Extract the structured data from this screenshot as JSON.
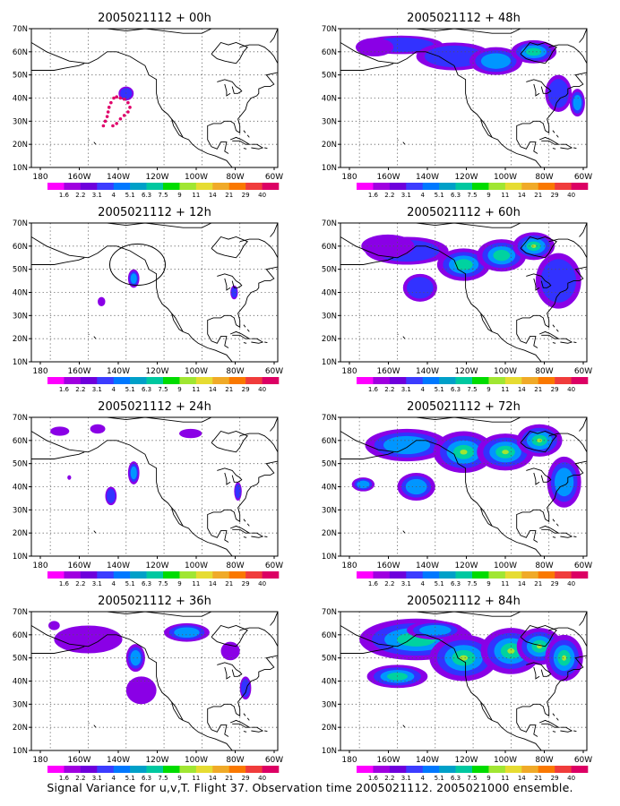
{
  "caption": "Signal Variance for u,v,T. Flight 37. Observation time 2005021112. 2005021000 ensemble.",
  "panels": [
    {
      "title": "2005021112 + 00h",
      "col": 0,
      "row": 0,
      "blobs": [
        [
          140,
          42,
          4,
          3,
          2
        ]
      ],
      "track": true,
      "circle": false
    },
    {
      "title": "2005021112 + 48h",
      "col": 1,
      "row": 0,
      "blobs": [
        [
          158,
          63,
          22,
          4,
          2
        ],
        [
          130,
          58,
          20,
          6,
          2
        ],
        [
          108,
          56,
          14,
          6,
          3
        ],
        [
          88,
          60,
          12,
          5,
          4
        ],
        [
          75,
          42,
          7,
          8,
          2
        ],
        [
          172,
          62,
          10,
          4,
          1
        ],
        [
          65,
          38,
          4,
          6,
          3
        ]
      ],
      "track": false,
      "circle": false
    },
    {
      "title": "2005021112 + 12h",
      "col": 0,
      "row": 1,
      "blobs": [
        [
          136,
          46,
          3,
          4,
          3
        ],
        [
          83,
          40,
          2,
          3,
          2
        ],
        [
          153,
          36,
          2,
          2,
          1
        ]
      ],
      "track": false,
      "circle": true
    },
    {
      "title": "2005021112 + 60h",
      "col": 1,
      "row": 1,
      "blobs": [
        [
          155,
          58,
          22,
          6,
          2
        ],
        [
          125,
          52,
          14,
          7,
          4
        ],
        [
          105,
          56,
          13,
          7,
          4
        ],
        [
          88,
          60,
          11,
          6,
          5
        ],
        [
          148,
          42,
          9,
          6,
          2
        ],
        [
          75,
          45,
          12,
          12,
          2
        ],
        [
          165,
          60,
          14,
          5,
          1
        ]
      ],
      "track": false,
      "circle": false
    },
    {
      "title": "2005021112 + 24h",
      "col": 0,
      "row": 2,
      "blobs": [
        [
          136,
          46,
          3,
          5,
          3
        ],
        [
          148,
          36,
          3,
          4,
          2
        ],
        [
          81,
          38,
          2,
          4,
          2
        ],
        [
          175,
          64,
          5,
          2,
          1
        ],
        [
          106,
          63,
          6,
          2,
          1
        ],
        [
          155,
          65,
          4,
          2,
          1
        ],
        [
          170,
          44,
          1,
          1,
          1
        ]
      ],
      "track": false,
      "circle": false
    },
    {
      "title": "2005021112 + 72h",
      "col": 1,
      "row": 2,
      "blobs": [
        [
          155,
          58,
          22,
          7,
          3
        ],
        [
          125,
          55,
          16,
          9,
          5
        ],
        [
          103,
          55,
          15,
          8,
          5
        ],
        [
          85,
          60,
          12,
          7,
          5
        ],
        [
          150,
          40,
          10,
          6,
          3
        ],
        [
          178,
          41,
          6,
          3,
          3
        ],
        [
          72,
          42,
          9,
          11,
          3
        ]
      ],
      "track": false,
      "circle": false
    },
    {
      "title": "2005021112 + 36h",
      "col": 0,
      "row": 3,
      "blobs": [
        [
          160,
          58,
          18,
          6,
          1
        ],
        [
          135,
          50,
          5,
          6,
          3
        ],
        [
          108,
          61,
          12,
          4,
          3
        ],
        [
          77,
          37,
          3,
          5,
          2
        ],
        [
          178,
          64,
          3,
          2,
          1
        ],
        [
          132,
          36,
          8,
          6,
          1
        ],
        [
          85,
          53,
          5,
          4,
          1
        ]
      ],
      "track": false,
      "circle": false
    },
    {
      "title": "2005021112 + 84h",
      "col": 1,
      "row": 3,
      "blobs": [
        [
          150,
          58,
          30,
          9,
          4
        ],
        [
          125,
          50,
          18,
          10,
          5
        ],
        [
          100,
          53,
          16,
          10,
          6
        ],
        [
          85,
          55,
          12,
          8,
          6
        ],
        [
          160,
          42,
          16,
          5,
          4
        ],
        [
          72,
          50,
          10,
          10,
          5
        ],
        [
          140,
          62,
          15,
          4,
          3
        ]
      ],
      "track": false,
      "circle": false
    }
  ],
  "axes": {
    "y_labels": [
      "10N",
      "20N",
      "30N",
      "40N",
      "50N",
      "60N",
      "70N"
    ],
    "x_labels": [
      "180",
      "160W",
      "140W",
      "120W",
      "100W",
      "80W",
      "60W"
    ],
    "lat_range": [
      10,
      70
    ],
    "lon_range_w": [
      190,
      60
    ]
  },
  "colorbar": {
    "labels": [
      "1.6",
      "2.2",
      "3.1",
      "4",
      "5.1",
      "6.3",
      "7.5",
      "9",
      "11",
      "14",
      "21",
      "29",
      "40"
    ],
    "colors": [
      "#ff00ff",
      "#a000e0",
      "#6e00dc",
      "#3c3cff",
      "#0078ff",
      "#00a0c8",
      "#00c8a0",
      "#00dc00",
      "#a0e632",
      "#e6dc32",
      "#f0aa28",
      "#fa7800",
      "#f03c3c",
      "#dc0064"
    ]
  },
  "contour_colors": [
    "#8a00e6",
    "#3232ff",
    "#0096ff",
    "#00d2a0",
    "#a0e632"
  ]
}
